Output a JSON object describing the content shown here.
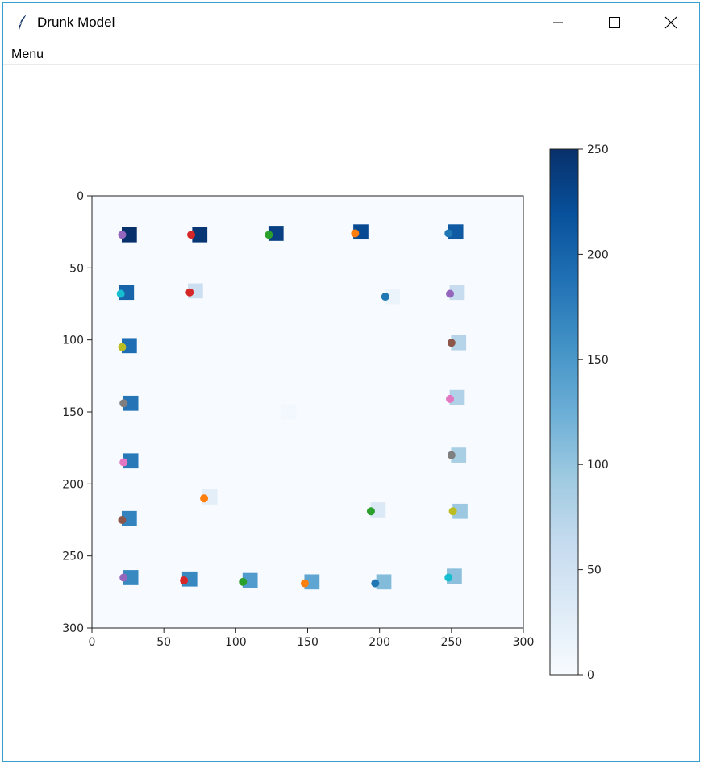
{
  "window": {
    "title": "Drunk Model",
    "menu": [
      "Menu"
    ]
  },
  "icons": {
    "app": "feather-icon",
    "minimize": "minimize-icon",
    "maximize": "maximize-icon",
    "close": "close-icon"
  },
  "chart_data": {
    "type": "heatmap",
    "title": "",
    "xlabel": "",
    "ylabel": "",
    "xlim": [
      0,
      300
    ],
    "ylim": [
      300,
      0
    ],
    "xticks": [
      0,
      50,
      100,
      150,
      200,
      250,
      300
    ],
    "yticks": [
      0,
      50,
      100,
      150,
      200,
      250,
      300
    ],
    "colormap": "Blues",
    "colorbar": {
      "min": 0,
      "max": 250,
      "ticks": [
        0,
        50,
        100,
        150,
        200,
        250
      ]
    },
    "cells": [
      {
        "x": 26,
        "y": 27,
        "value": 250
      },
      {
        "x": 75,
        "y": 27,
        "value": 245
      },
      {
        "x": 128,
        "y": 26,
        "value": 235
      },
      {
        "x": 187,
        "y": 25,
        "value": 225
      },
      {
        "x": 253,
        "y": 25,
        "value": 210
      },
      {
        "x": 24,
        "y": 67,
        "value": 200
      },
      {
        "x": 72,
        "y": 66,
        "value": 55
      },
      {
        "x": 209,
        "y": 70,
        "value": 15
      },
      {
        "x": 254,
        "y": 67,
        "value": 60
      },
      {
        "x": 26,
        "y": 104,
        "value": 190
      },
      {
        "x": 255,
        "y": 102,
        "value": 75
      },
      {
        "x": 27,
        "y": 144,
        "value": 185
      },
      {
        "x": 254,
        "y": 140,
        "value": 80
      },
      {
        "x": 137,
        "y": 150,
        "value": 5
      },
      {
        "x": 27,
        "y": 184,
        "value": 180
      },
      {
        "x": 255,
        "y": 180,
        "value": 85
      },
      {
        "x": 82,
        "y": 209,
        "value": 25
      },
      {
        "x": 199,
        "y": 218,
        "value": 35
      },
      {
        "x": 26,
        "y": 224,
        "value": 170
      },
      {
        "x": 256,
        "y": 219,
        "value": 95
      },
      {
        "x": 27,
        "y": 265,
        "value": 165
      },
      {
        "x": 68,
        "y": 266,
        "value": 165
      },
      {
        "x": 110,
        "y": 267,
        "value": 145
      },
      {
        "x": 153,
        "y": 268,
        "value": 135
      },
      {
        "x": 203,
        "y": 268,
        "value": 110
      },
      {
        "x": 252,
        "y": 264,
        "value": 105
      }
    ],
    "agents": [
      {
        "x": 21,
        "y": 27,
        "color": "#9467bd"
      },
      {
        "x": 69,
        "y": 27,
        "color": "#d62728"
      },
      {
        "x": 123,
        "y": 27,
        "color": "#2ca02c"
      },
      {
        "x": 183,
        "y": 26,
        "color": "#ff7f0e"
      },
      {
        "x": 248,
        "y": 26,
        "color": "#1f77b4"
      },
      {
        "x": 20,
        "y": 68,
        "color": "#17becf"
      },
      {
        "x": 68,
        "y": 67,
        "color": "#d62728"
      },
      {
        "x": 204,
        "y": 70,
        "color": "#1f77b4"
      },
      {
        "x": 249,
        "y": 68,
        "color": "#9467bd"
      },
      {
        "x": 21,
        "y": 105,
        "color": "#bcbd22"
      },
      {
        "x": 250,
        "y": 102,
        "color": "#8c564b"
      },
      {
        "x": 22,
        "y": 144,
        "color": "#7f7f7f"
      },
      {
        "x": 249,
        "y": 141,
        "color": "#e377c2"
      },
      {
        "x": 22,
        "y": 185,
        "color": "#e377c2"
      },
      {
        "x": 250,
        "y": 180,
        "color": "#7f7f7f"
      },
      {
        "x": 78,
        "y": 210,
        "color": "#ff7f0e"
      },
      {
        "x": 194,
        "y": 219,
        "color": "#2ca02c"
      },
      {
        "x": 21,
        "y": 225,
        "color": "#8c564b"
      },
      {
        "x": 251,
        "y": 219,
        "color": "#bcbd22"
      },
      {
        "x": 22,
        "y": 265,
        "color": "#9467bd"
      },
      {
        "x": 64,
        "y": 267,
        "color": "#d62728"
      },
      {
        "x": 105,
        "y": 268,
        "color": "#2ca02c"
      },
      {
        "x": 148,
        "y": 269,
        "color": "#ff7f0e"
      },
      {
        "x": 197,
        "y": 269,
        "color": "#1f77b4"
      },
      {
        "x": 248,
        "y": 265,
        "color": "#17becf"
      }
    ]
  }
}
